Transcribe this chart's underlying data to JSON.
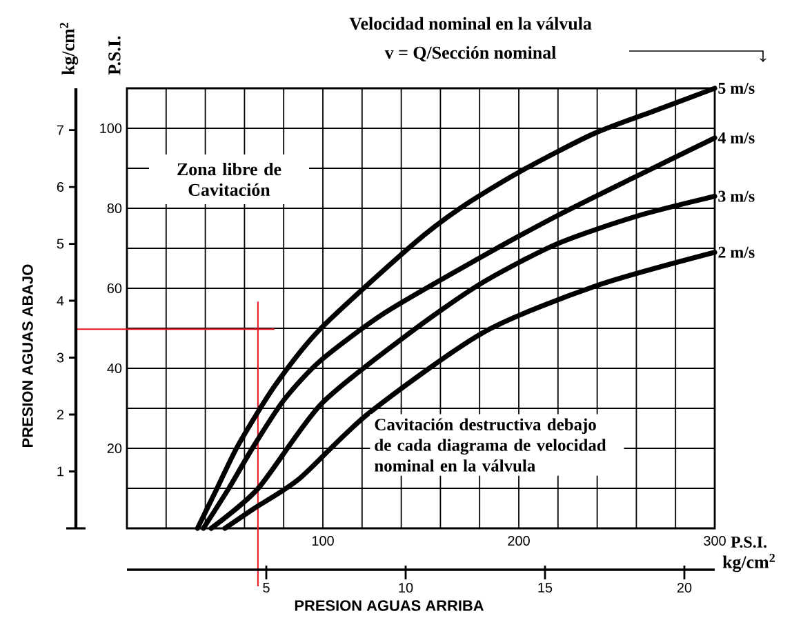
{
  "chart_data": {
    "type": "line",
    "title": "Velocidad nominal en la válvula",
    "subtitle": "v = Q/Sección nominal",
    "ylabel": "P.S.I.",
    "y2label": "kg/cm$^{2}$",
    "xlabel": "P.S.I.",
    "x2label": "kg/cm$^{2}$",
    "annotations": [
      "PRESION AGUAS ABAJO",
      "PRESION AGUAS ARRIBA",
      "Zona libre de Cavitación",
      "Cavitación destructiva debajo de cada diagrama de velocidad nominal en la válvula"
    ],
    "xlim": [
      0,
      300
    ],
    "ylim": [
      0,
      110
    ],
    "xticks": [
      {
        "value": 0,
        "label": null
      },
      {
        "value": 20,
        "label": null
      },
      {
        "value": 40,
        "label": null
      },
      {
        "value": 60,
        "label": null
      },
      {
        "value": 80,
        "label": null
      },
      100,
      {
        "value": 120,
        "label": null
      },
      {
        "value": 140,
        "label": null
      },
      {
        "value": 160,
        "label": null
      },
      {
        "value": 180,
        "label": null
      },
      200,
      {
        "value": 220,
        "label": null
      },
      {
        "value": 240,
        "label": null
      },
      {
        "value": 260,
        "label": null
      },
      {
        "value": 280,
        "label": null
      },
      300
    ],
    "yticks": [
      {
        "value": 0,
        "label": null
      },
      {
        "value": 10,
        "label": null
      },
      20,
      {
        "value": 30,
        "label": null
      },
      40,
      {
        "value": 50,
        "label": null
      },
      60,
      {
        "value": 70,
        "label": null
      },
      80,
      {
        "value": 90,
        "label": null
      },
      100,
      {
        "value": 110,
        "label": null
      }
    ],
    "y2lim": [
      0,
      7.734
    ],
    "y2ticks": [
      1,
      2,
      3,
      4,
      5,
      6,
      7
    ],
    "x2lim": [
      0,
      21.09
    ],
    "x2ticks": [
      5,
      10,
      15,
      20
    ],
    "grid": true,
    "legend": false,
    "marker": "none",
    "line_style": "solid",
    "series": [
      {
        "name": "5 m/s",
        "color": "#000000",
        "x": [
          36,
          46,
          57,
          76,
          99,
          146,
          170,
          200,
          238,
          270,
          300
        ],
        "values": [
          0,
          10,
          21,
          36,
          50,
          71,
          80,
          89,
          98.6,
          104.5,
          110
        ]
      },
      {
        "name": "4 m/s",
        "color": "#000000",
        "x": [
          39,
          52,
          64,
          80,
          99,
          132,
          180,
          219,
          260,
          300
        ],
        "values": [
          0,
          10,
          20,
          32,
          42,
          54,
          67.6,
          78,
          88,
          97.6
        ]
      },
      {
        "name": "3 m/s",
        "color": "#000000",
        "x": [
          43,
          67,
          99,
          142,
          180,
          219,
          260,
          300
        ],
        "values": [
          0,
          10,
          31,
          48,
          61,
          71,
          78,
          83
        ]
      },
      {
        "name": "2 m/s",
        "color": "#000000",
        "x": [
          50,
          65,
          88,
          123,
          182,
          240,
          300
        ],
        "values": [
          0,
          5,
          12.4,
          28.6,
          49,
          60.7,
          69
        ]
      }
    ],
    "ref_lines": [
      {
        "axis": "y2",
        "value": 3.5,
        "color": "#e8141c"
      },
      {
        "axis": "x2",
        "value": 4.7,
        "color": "#e8141c"
      }
    ]
  }
}
